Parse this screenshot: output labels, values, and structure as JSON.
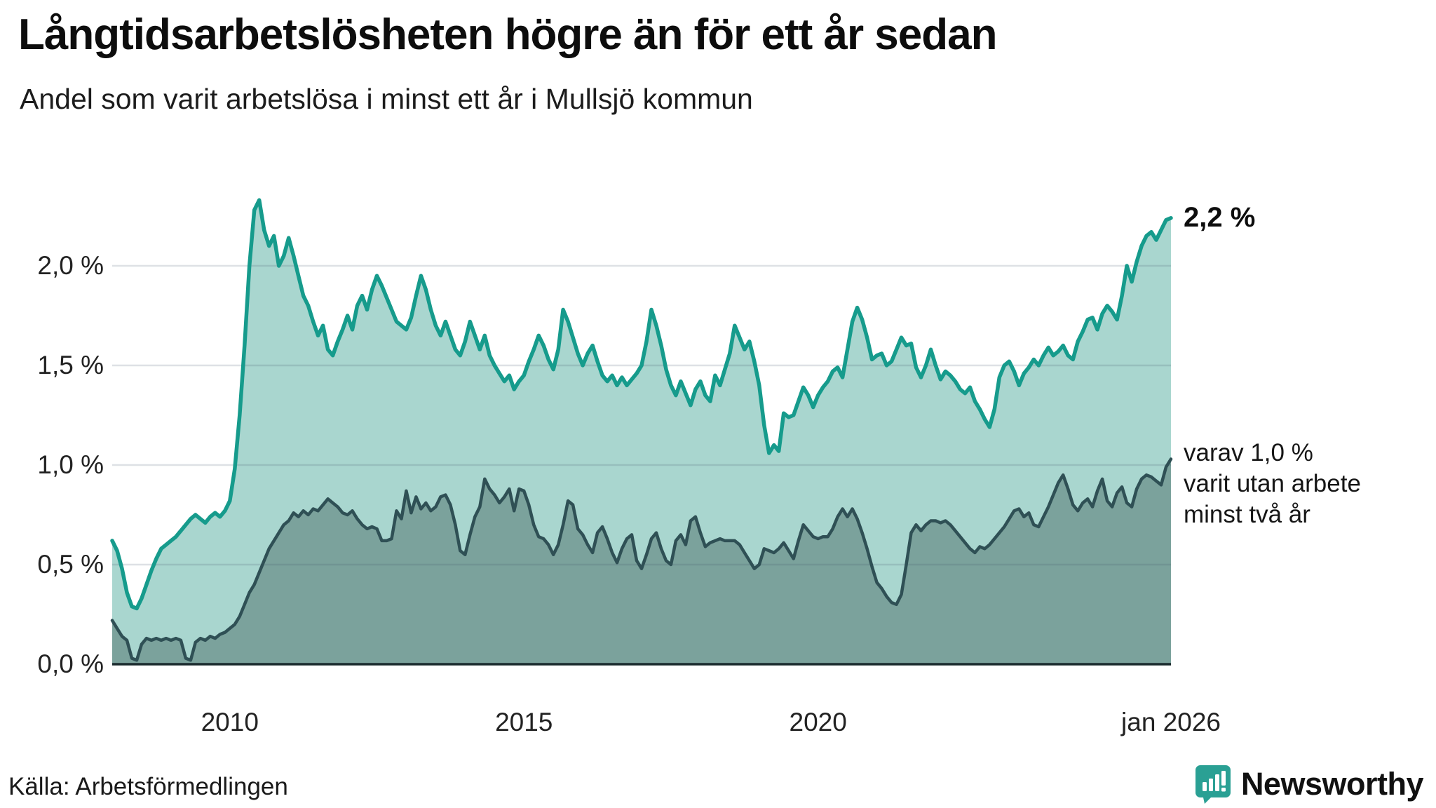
{
  "title": "Långtidsarbetslösheten högre än för ett år sedan",
  "subtitle": "Andel som varit arbetslösa i minst ett år i Mullsjö kommun",
  "source": "Källa: Arbetsförmedlingen",
  "branding": {
    "name": "Newsworthy",
    "icon": "newsworthy-speech-bubble-bar-chart-icon",
    "color": "#2b9c92"
  },
  "annotations": {
    "series1_end_label": "2,2 %",
    "series2_end_label_lines": [
      "varav 1,0 %",
      "varit utan arbete",
      "minst två år"
    ]
  },
  "colors": {
    "series1_stroke": "#169b8c",
    "series1_fill": "#a9d6cf",
    "series2_stroke": "#2f5055",
    "series2_fill": "#7ba29c",
    "gridline": "rgba(70,90,110,0.18)",
    "axis_line": "#1b2b2e",
    "text": "#222222"
  },
  "chart_data": {
    "type": "area",
    "title": "Långtidsarbetslösheten högre än för ett år sedan",
    "subtitle": "Andel som varit arbetslösa i minst ett år i Mullsjö kommun",
    "x_start": "2008-01",
    "x_end": "2026-01",
    "x_step": "month",
    "ylim": [
      0,
      2.6
    ],
    "grid": true,
    "y_ticks": [
      {
        "label": "0,0 %",
        "value": 0.0
      },
      {
        "label": "0,5 %",
        "value": 0.5
      },
      {
        "label": "1,0 %",
        "value": 1.0
      },
      {
        "label": "1,5 %",
        "value": 1.5
      },
      {
        "label": "2,0 %",
        "value": 2.0
      }
    ],
    "x_ticks": [
      {
        "label": "2010",
        "month_index": 24
      },
      {
        "label": "2015",
        "month_index": 84
      },
      {
        "label": "2020",
        "month_index": 144
      },
      {
        "label": "jan 2026",
        "month_index": 216
      }
    ],
    "series": [
      {
        "name": "Andel som varit arbetslösa i minst ett år",
        "end_value_label": "2,2 %",
        "values": [
          0.62,
          0.57,
          0.48,
          0.36,
          0.29,
          0.28,
          0.33,
          0.4,
          0.47,
          0.53,
          0.58,
          0.6,
          0.62,
          0.64,
          0.67,
          0.7,
          0.73,
          0.75,
          0.73,
          0.71,
          0.74,
          0.76,
          0.74,
          0.77,
          0.82,
          0.98,
          1.25,
          1.6,
          2.0,
          2.28,
          2.33,
          2.18,
          2.1,
          2.15,
          2.0,
          2.05,
          2.14,
          2.05,
          1.95,
          1.85,
          1.8,
          1.72,
          1.65,
          1.7,
          1.58,
          1.55,
          1.62,
          1.68,
          1.75,
          1.68,
          1.8,
          1.85,
          1.78,
          1.88,
          1.95,
          1.9,
          1.84,
          1.78,
          1.72,
          1.7,
          1.68,
          1.74,
          1.85,
          1.95,
          1.88,
          1.78,
          1.7,
          1.65,
          1.72,
          1.65,
          1.58,
          1.55,
          1.62,
          1.72,
          1.65,
          1.58,
          1.65,
          1.55,
          1.5,
          1.46,
          1.42,
          1.45,
          1.38,
          1.42,
          1.45,
          1.52,
          1.58,
          1.65,
          1.6,
          1.53,
          1.48,
          1.58,
          1.78,
          1.72,
          1.64,
          1.56,
          1.5,
          1.56,
          1.6,
          1.52,
          1.45,
          1.42,
          1.45,
          1.4,
          1.44,
          1.4,
          1.43,
          1.46,
          1.5,
          1.62,
          1.78,
          1.7,
          1.6,
          1.48,
          1.4,
          1.35,
          1.42,
          1.36,
          1.3,
          1.38,
          1.42,
          1.35,
          1.32,
          1.45,
          1.4,
          1.48,
          1.56,
          1.7,
          1.64,
          1.58,
          1.62,
          1.52,
          1.4,
          1.2,
          1.06,
          1.1,
          1.07,
          1.26,
          1.24,
          1.25,
          1.32,
          1.39,
          1.35,
          1.29,
          1.35,
          1.39,
          1.42,
          1.47,
          1.49,
          1.44,
          1.58,
          1.72,
          1.79,
          1.73,
          1.64,
          1.53,
          1.55,
          1.56,
          1.5,
          1.52,
          1.58,
          1.64,
          1.6,
          1.61,
          1.49,
          1.44,
          1.5,
          1.58,
          1.5,
          1.43,
          1.47,
          1.45,
          1.42,
          1.38,
          1.36,
          1.39,
          1.32,
          1.28,
          1.23,
          1.19,
          1.28,
          1.44,
          1.5,
          1.52,
          1.47,
          1.4,
          1.46,
          1.49,
          1.53,
          1.5,
          1.55,
          1.59,
          1.55,
          1.57,
          1.6,
          1.55,
          1.53,
          1.62,
          1.67,
          1.73,
          1.74,
          1.68,
          1.76,
          1.8,
          1.77,
          1.73,
          1.85,
          2.0,
          1.92,
          2.02,
          2.1,
          2.15,
          2.17,
          2.13,
          2.18,
          2.23,
          2.24
        ]
      },
      {
        "name": "varav utan arbete minst två år",
        "end_value_label": "varav 1,0 % varit utan arbete minst två år",
        "values": [
          0.22,
          0.18,
          0.14,
          0.12,
          0.03,
          0.02,
          0.1,
          0.13,
          0.12,
          0.13,
          0.12,
          0.13,
          0.12,
          0.13,
          0.12,
          0.03,
          0.02,
          0.11,
          0.13,
          0.12,
          0.14,
          0.13,
          0.15,
          0.16,
          0.18,
          0.2,
          0.24,
          0.3,
          0.36,
          0.4,
          0.46,
          0.52,
          0.58,
          0.62,
          0.66,
          0.7,
          0.72,
          0.76,
          0.74,
          0.77,
          0.75,
          0.78,
          0.77,
          0.8,
          0.83,
          0.81,
          0.79,
          0.76,
          0.75,
          0.77,
          0.73,
          0.7,
          0.68,
          0.69,
          0.68,
          0.62,
          0.62,
          0.63,
          0.77,
          0.73,
          0.87,
          0.76,
          0.84,
          0.78,
          0.81,
          0.77,
          0.79,
          0.84,
          0.85,
          0.8,
          0.7,
          0.57,
          0.55,
          0.65,
          0.74,
          0.79,
          0.93,
          0.88,
          0.85,
          0.81,
          0.84,
          0.88,
          0.77,
          0.88,
          0.87,
          0.8,
          0.7,
          0.64,
          0.63,
          0.6,
          0.55,
          0.6,
          0.7,
          0.82,
          0.8,
          0.68,
          0.65,
          0.6,
          0.56,
          0.66,
          0.69,
          0.63,
          0.56,
          0.51,
          0.58,
          0.63,
          0.65,
          0.52,
          0.48,
          0.55,
          0.63,
          0.66,
          0.58,
          0.52,
          0.5,
          0.62,
          0.65,
          0.6,
          0.72,
          0.74,
          0.66,
          0.59,
          0.61,
          0.62,
          0.63,
          0.62,
          0.62,
          0.62,
          0.6,
          0.56,
          0.52,
          0.48,
          0.5,
          0.58,
          0.57,
          0.56,
          0.58,
          0.61,
          0.57,
          0.53,
          0.62,
          0.7,
          0.67,
          0.64,
          0.63,
          0.64,
          0.64,
          0.68,
          0.74,
          0.78,
          0.74,
          0.78,
          0.73,
          0.66,
          0.58,
          0.49,
          0.41,
          0.38,
          0.34,
          0.31,
          0.3,
          0.35,
          0.5,
          0.66,
          0.7,
          0.67,
          0.7,
          0.72,
          0.72,
          0.71,
          0.72,
          0.7,
          0.67,
          0.64,
          0.61,
          0.58,
          0.56,
          0.59,
          0.58,
          0.6,
          0.63,
          0.66,
          0.69,
          0.73,
          0.77,
          0.78,
          0.74,
          0.76,
          0.7,
          0.69,
          0.74,
          0.79,
          0.85,
          0.91,
          0.95,
          0.88,
          0.8,
          0.77,
          0.81,
          0.83,
          0.79,
          0.87,
          0.93,
          0.82,
          0.79,
          0.86,
          0.89,
          0.81,
          0.79,
          0.88,
          0.93,
          0.95,
          0.94,
          0.92,
          0.9,
          0.99,
          1.03
        ]
      }
    ]
  }
}
